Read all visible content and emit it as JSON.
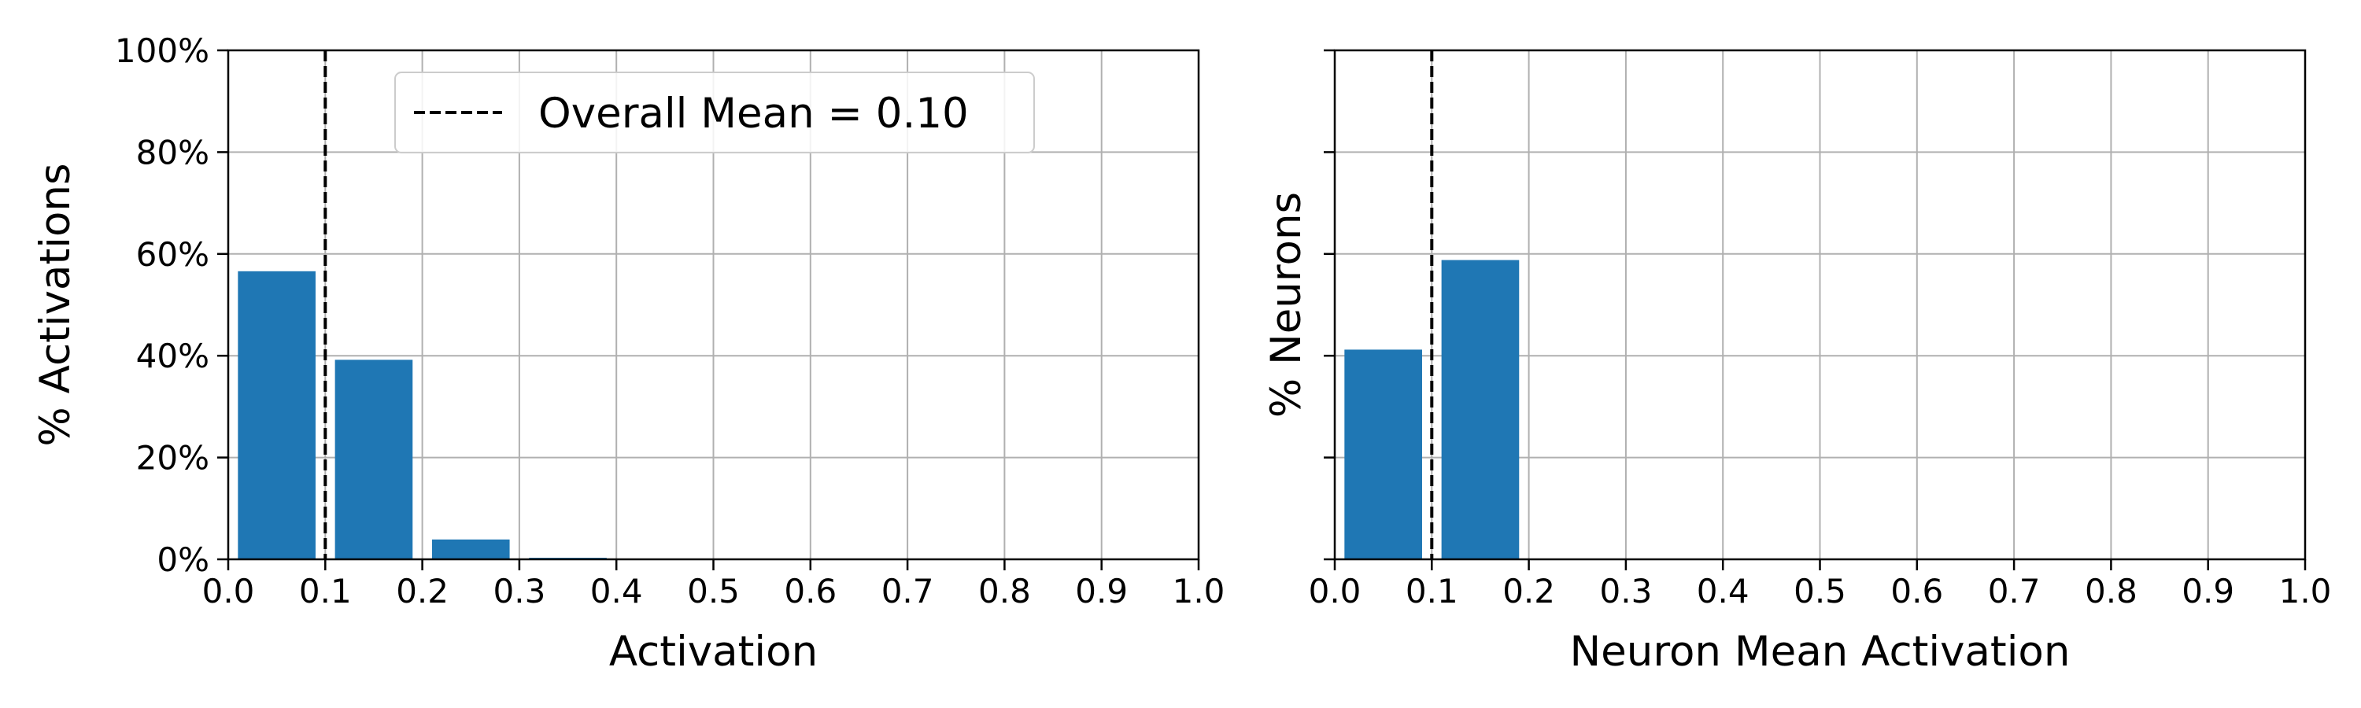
{
  "chart_data": [
    {
      "type": "bar",
      "x": [
        0.05,
        0.15,
        0.25,
        0.35,
        0.45,
        0.55,
        0.65,
        0.75,
        0.85,
        0.95
      ],
      "values": [
        56.6,
        39.2,
        3.9,
        0.3,
        0,
        0,
        0,
        0,
        0,
        0
      ],
      "bar_width": 0.08,
      "xlabel": "Activation",
      "ylabel": "% Activations",
      "xlim": [
        0,
        1
      ],
      "ylim": [
        0,
        100
      ],
      "xticks": [
        "0.0",
        "0.1",
        "0.2",
        "0.3",
        "0.4",
        "0.5",
        "0.6",
        "0.7",
        "0.8",
        "0.9",
        "1.0"
      ],
      "yticks": [
        "0%",
        "20%",
        "40%",
        "60%",
        "80%",
        "100%"
      ],
      "mean_line": 0.1,
      "legend": {
        "label": "Overall Mean = 0.10",
        "placement": "top-center"
      },
      "grid": true,
      "color": "#1f77b4"
    },
    {
      "type": "bar",
      "x": [
        0.05,
        0.15
      ],
      "values": [
        41.2,
        58.8
      ],
      "bar_width": 0.08,
      "xlabel": "Neuron Mean Activation",
      "ylabel": "% Neurons",
      "xlim": [
        0,
        1
      ],
      "ylim": [
        0,
        100
      ],
      "xticks": [
        "0.0",
        "0.1",
        "0.2",
        "0.3",
        "0.4",
        "0.5",
        "0.6",
        "0.7",
        "0.8",
        "0.9",
        "1.0"
      ],
      "yticks": [
        "",
        "",
        "",
        "",
        "",
        ""
      ],
      "mean_line": 0.1,
      "grid": true,
      "color": "#1f77b4"
    }
  ]
}
